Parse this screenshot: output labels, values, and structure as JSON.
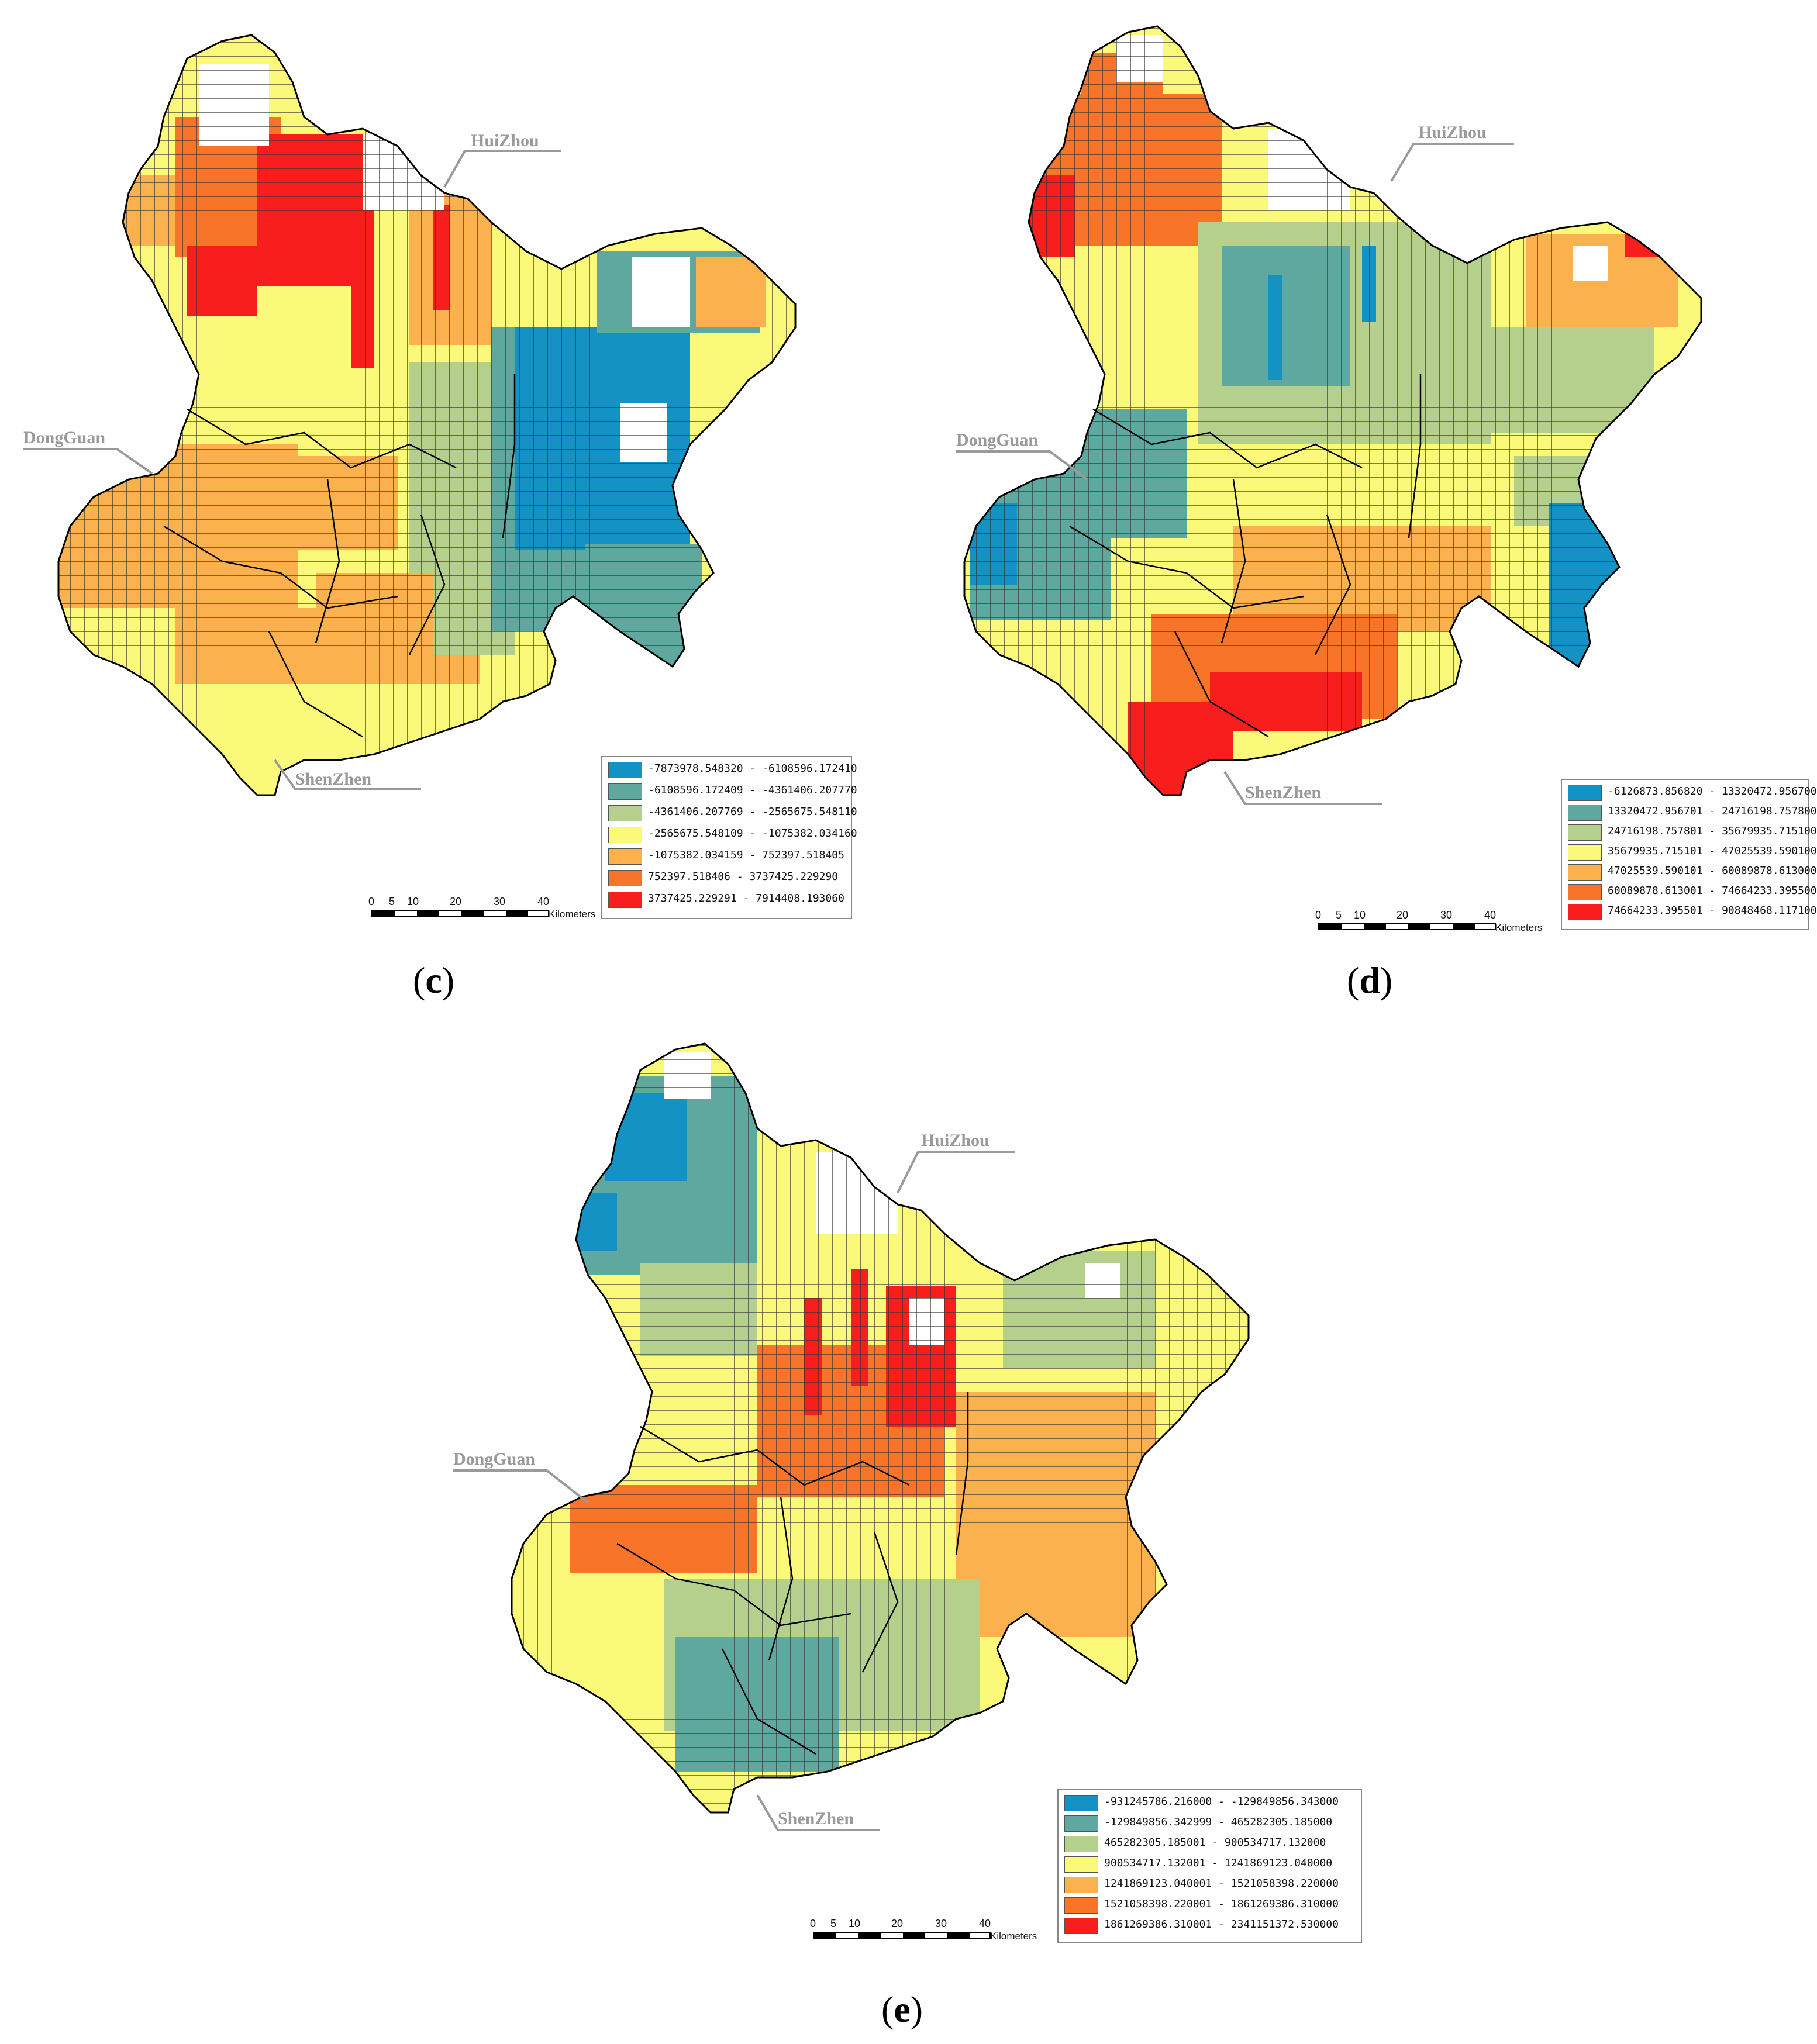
{
  "colors": {
    "class1": "#1592c4",
    "class2": "#5fa8a0",
    "class3": "#b5d08c",
    "class4": "#fbf97a",
    "class5": "#fbb14e",
    "class6": "#f87428",
    "class7": "#f81e1e",
    "boundary": "#000000",
    "label_gray": "#9a9a9a"
  },
  "city_labels": {
    "huizhou": "HuiZhou",
    "dongguan": "DongGuan",
    "shenzhen": "ShenZhen"
  },
  "scale": {
    "ticks": [
      "0",
      "5",
      "10",
      "20",
      "30",
      "40"
    ],
    "units": "Kilometers"
  },
  "panels": [
    {
      "id": "c",
      "caption_open": "(",
      "caption_letter": "c",
      "caption_close": ")",
      "legend": [
        "-7873978.548320 - -6108596.172410",
        "-6108596.172409 - -4361406.207770",
        "-4361406.207769 - -2565675.548110",
        "-2565675.548109 - -1075382.034160",
        "-1075382.034159 - 752397.518405",
        "752397.518406 - 3737425.229290",
        "3737425.229291 - 7914408.193060"
      ]
    },
    {
      "id": "d",
      "caption_open": "(",
      "caption_letter": "d",
      "caption_close": ")",
      "legend": [
        "-6126873.856820 - 13320472.956700",
        "13320472.956701 - 24716198.757800",
        "24716198.757801 - 35679935.715100",
        "35679935.715101 - 47025539.590100",
        "47025539.590101 - 60089878.613000",
        "60089878.613001 - 74664233.395500",
        "74664233.395501 - 90848468.117100"
      ]
    },
    {
      "id": "e",
      "caption_open": "(",
      "caption_letter": "e",
      "caption_close": ")",
      "legend": [
        "-931245786.216000 - -129849856.343000",
        "-129849856.342999 - 465282305.185000",
        "465282305.185001 - 900534717.132000",
        "900534717.132001 - 1241869123.040000",
        "1241869123.040001 - 1521058398.220000",
        "1521058398.220001 - 1861269386.310000",
        "1861269386.310001 - 2341151372.530000"
      ]
    }
  ]
}
